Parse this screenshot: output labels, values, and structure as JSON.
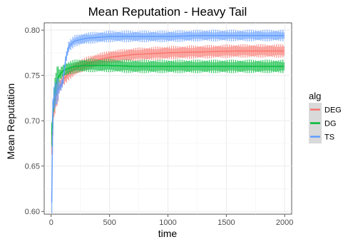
{
  "chart_data": {
    "type": "line",
    "title": "Mean Reputation - Heavy Tail",
    "xlabel": "time",
    "ylabel": "Mean Reputation",
    "xlim": [
      -60,
      2060
    ],
    "ylim": [
      0.597,
      0.808
    ],
    "x_ticks": [
      0,
      500,
      1000,
      1500,
      2000
    ],
    "y_ticks": [
      0.6,
      0.65,
      0.7,
      0.75,
      0.8
    ],
    "x_tick_labels": [
      "0",
      "500",
      "1000",
      "1500",
      "2000"
    ],
    "y_tick_labels": [
      "0.60",
      "0.65",
      "0.70",
      "0.75",
      "0.80"
    ],
    "grid": true,
    "legend": {
      "title": "alg",
      "position": "right"
    },
    "series": [
      {
        "name": "DEG",
        "color": "#F8766D",
        "x": [
          5,
          20,
          40,
          60,
          80,
          100,
          150,
          200,
          300,
          400,
          500,
          700,
          1000,
          1300,
          1600,
          2000
        ],
        "mean": [
          0.675,
          0.715,
          0.728,
          0.735,
          0.74,
          0.745,
          0.752,
          0.757,
          0.763,
          0.767,
          0.77,
          0.773,
          0.775,
          0.776,
          0.777,
          0.777
        ],
        "half_width": 0.006
      },
      {
        "name": "DG",
        "color": "#00BA38",
        "x": [
          5,
          20,
          40,
          60,
          80,
          100,
          150,
          200,
          300,
          400,
          500,
          700,
          1000,
          1300,
          1600,
          2000
        ],
        "mean": [
          0.685,
          0.72,
          0.74,
          0.748,
          0.752,
          0.755,
          0.758,
          0.76,
          0.761,
          0.761,
          0.761,
          0.76,
          0.76,
          0.76,
          0.76,
          0.76
        ],
        "half_width": 0.006
      },
      {
        "name": "TS",
        "color": "#619CFF",
        "x": [
          5,
          10,
          20,
          40,
          60,
          80,
          100,
          120,
          150,
          200,
          300,
          400,
          500,
          700,
          1000,
          1300,
          1600,
          2000
        ],
        "mean": [
          0.61,
          0.7,
          0.725,
          0.73,
          0.735,
          0.738,
          0.742,
          0.765,
          0.782,
          0.788,
          0.791,
          0.792,
          0.793,
          0.793,
          0.793,
          0.794,
          0.794,
          0.794
        ],
        "half_width": 0.005
      }
    ]
  }
}
